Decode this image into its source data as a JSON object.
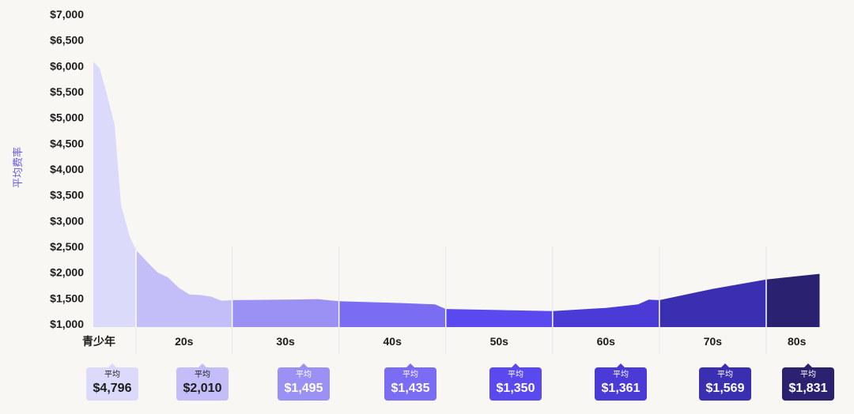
{
  "chart_data": {
    "type": "area",
    "ylabel": "平均费率",
    "ylim": [
      1000,
      7000
    ],
    "yticks": [
      "$7,000",
      "$6,500",
      "$6,000",
      "$5,500",
      "$5,000",
      "$4,500",
      "$4,000",
      "$3,500",
      "$3,000",
      "$2,500",
      "$2,000",
      "$1,500",
      "$1,000"
    ],
    "ytick_values": [
      7000,
      6500,
      6000,
      5500,
      5000,
      4500,
      4000,
      3500,
      3000,
      2500,
      2000,
      1500,
      1000
    ],
    "x_range": [
      16,
      85
    ],
    "categories": [
      "青少年",
      "20s",
      "30s",
      "40s",
      "50s",
      "60s",
      "70s",
      "80s"
    ],
    "series": [
      {
        "name": "青少年",
        "color": "#dcdafb",
        "x": [
          16,
          16.6,
          17.2,
          18,
          18.6,
          19.4,
          20
        ],
        "values": [
          6080,
          5950,
          5500,
          4850,
          3300,
          2700,
          2430
        ]
      },
      {
        "name": "20s",
        "color": "#c3bdf8",
        "x": [
          20,
          21,
          22,
          23,
          24,
          25,
          26,
          27,
          28,
          29
        ],
        "values": [
          2430,
          2210,
          2000,
          1900,
          1700,
          1570,
          1560,
          1530,
          1450,
          1460
        ]
      },
      {
        "name": "30s",
        "color": "#9b91f5",
        "x": [
          29,
          34,
          37,
          39
        ],
        "values": [
          1460,
          1470,
          1480,
          1440
        ]
      },
      {
        "name": "40s",
        "color": "#7a6cf3",
        "x": [
          39,
          44,
          48,
          49
        ],
        "values": [
          1440,
          1410,
          1380,
          1290
        ]
      },
      {
        "name": "50s",
        "color": "#5b49f0",
        "x": [
          49,
          54,
          59
        ],
        "values": [
          1290,
          1270,
          1250
        ]
      },
      {
        "name": "60s",
        "color": "#4a3bd7",
        "x": [
          59,
          64,
          67,
          68,
          69
        ],
        "values": [
          1250,
          1310,
          1380,
          1470,
          1460
        ]
      },
      {
        "name": "70s",
        "color": "#3a2fb0",
        "x": [
          69,
          74,
          79
        ],
        "values": [
          1460,
          1680,
          1860
        ]
      },
      {
        "name": "80s",
        "color": "#2a2270",
        "x": [
          79,
          84
        ],
        "values": [
          1860,
          1970
        ]
      }
    ],
    "averages": [
      {
        "label": "平均",
        "value": "$4,796",
        "bg": "#dcdafb",
        "fg": "#1c1c1c"
      },
      {
        "label": "平均",
        "value": "$2,010",
        "bg": "#c3bdf8",
        "fg": "#1c1c1c"
      },
      {
        "label": "平均",
        "value": "$1,495",
        "bg": "#9b91f5",
        "fg": "#ffffff"
      },
      {
        "label": "平均",
        "value": "$1,435",
        "bg": "#7a6cf3",
        "fg": "#ffffff"
      },
      {
        "label": "平均",
        "value": "$1,350",
        "bg": "#5b49f0",
        "fg": "#ffffff"
      },
      {
        "label": "平均",
        "value": "$1,361",
        "bg": "#4a3bd7",
        "fg": "#ffffff"
      },
      {
        "label": "平均",
        "value": "$1,569",
        "bg": "#3a2fb0",
        "fg": "#ffffff"
      },
      {
        "label": "平均",
        "value": "$1,831",
        "bg": "#2a2270",
        "fg": "#ffffff"
      }
    ]
  }
}
